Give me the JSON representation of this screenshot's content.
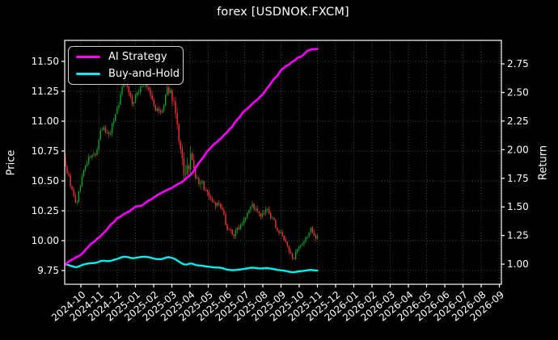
{
  "title": "forex [USDNOK.FXCM]",
  "legend": {
    "items": [
      {
        "label": "AI Strategy",
        "color": "#ff00ff"
      },
      {
        "label": "Buy-and-Hold",
        "color": "#00f0f0"
      }
    ]
  },
  "chart_data": {
    "type": "candlestick+line",
    "title": "forex [USDNOK.FXCM]",
    "grid": "dotted",
    "legend_position": "upper-left",
    "x_axis": {
      "tick_labels": [
        "2024-10",
        "2024-11",
        "2024-12",
        "2025-01",
        "2025-02",
        "2025-03",
        "2025-04",
        "2025-05",
        "2025-06",
        "2025-07",
        "2025-08",
        "2025-09",
        "2025-10",
        "2025-11",
        "2025-12",
        "2026-01",
        "2026-02",
        "2026-03",
        "2026-04",
        "2026-05",
        "2026-06",
        "2026-07",
        "2026-08",
        "2026-09"
      ],
      "range": [
        -0.889,
        23.111
      ]
    },
    "price_axis": {
      "label": "Price",
      "ticks": [
        9.75,
        10.0,
        10.25,
        10.5,
        10.75,
        11.0,
        11.25,
        11.5
      ],
      "range": [
        9.635,
        11.676
      ]
    },
    "return_axis": {
      "label": "Return",
      "ticks": [
        1.0,
        1.25,
        1.5,
        1.75,
        2.0,
        2.25,
        2.5,
        2.75
      ],
      "range": [
        0.824,
        2.955
      ]
    },
    "series": {
      "data_span_months": [
        -0.85,
        13.0
      ],
      "candle_count": 152,
      "seed": 9,
      "price_keypoints": [
        [
          -0.85,
          10.62
        ],
        [
          -0.6,
          10.45
        ],
        [
          -0.3,
          10.26
        ],
        [
          0,
          10.55
        ],
        [
          0.4,
          10.7
        ],
        [
          0.8,
          10.72
        ],
        [
          1.1,
          10.95
        ],
        [
          1.5,
          10.88
        ],
        [
          2.0,
          11.15
        ],
        [
          2.4,
          11.38
        ],
        [
          2.8,
          11.12
        ],
        [
          3.3,
          11.33
        ],
        [
          3.7,
          11.25
        ],
        [
          4.0,
          11.1
        ],
        [
          4.4,
          11.05
        ],
        [
          4.8,
          11.3
        ],
        [
          5.1,
          11.15
        ],
        [
          5.35,
          10.7
        ],
        [
          5.6,
          10.55
        ],
        [
          5.8,
          10.5
        ],
        [
          6.0,
          10.75
        ],
        [
          6.2,
          10.5
        ],
        [
          6.7,
          10.45
        ],
        [
          7.1,
          10.35
        ],
        [
          7.6,
          10.28
        ],
        [
          8.0,
          10.1
        ],
        [
          8.4,
          10.05
        ],
        [
          8.9,
          10.2
        ],
        [
          9.3,
          10.33
        ],
        [
          9.8,
          10.18
        ],
        [
          10.2,
          10.25
        ],
        [
          10.7,
          10.1
        ],
        [
          11.1,
          10.02
        ],
        [
          11.5,
          9.85
        ],
        [
          11.8,
          9.9
        ],
        [
          12.2,
          9.95
        ],
        [
          12.6,
          10.12
        ],
        [
          12.9,
          10.0
        ],
        [
          13.0,
          10.05
        ]
      ],
      "volatility_keypoints": [
        [
          -0.85,
          0.07
        ],
        [
          0,
          0.055
        ],
        [
          1,
          0.06
        ],
        [
          2,
          0.065
        ],
        [
          4.5,
          0.06
        ],
        [
          5.2,
          0.14
        ],
        [
          5.9,
          0.16
        ],
        [
          6.4,
          0.1
        ],
        [
          7,
          0.07
        ],
        [
          8,
          0.06
        ],
        [
          9,
          0.06
        ],
        [
          10,
          0.055
        ],
        [
          11,
          0.05
        ],
        [
          12,
          0.06
        ],
        [
          13,
          0.05
        ]
      ],
      "ai_strategy_keypoints": [
        [
          -0.85,
          1.0
        ],
        [
          0,
          1.08
        ],
        [
          1,
          1.22
        ],
        [
          2,
          1.4
        ],
        [
          3,
          1.5
        ],
        [
          4,
          1.57
        ],
        [
          5,
          1.66
        ],
        [
          6,
          1.78
        ],
        [
          7,
          2.0
        ],
        [
          8,
          2.14
        ],
        [
          9,
          2.34
        ],
        [
          10,
          2.5
        ],
        [
          11,
          2.68
        ],
        [
          12,
          2.8
        ],
        [
          12.5,
          2.85
        ],
        [
          13.0,
          2.88
        ]
      ],
      "buy_and_hold": "price / initial_price (plotted on Return axis)",
      "ai_strategy_final_return": 2.88,
      "buy_and_hold_final_return": 0.95
    },
    "colors": {
      "background": "#000000",
      "text": "#ffffff",
      "grid": "#4f4f4f",
      "spine": "#ffffff",
      "candle_up": "#0fa32a",
      "candle_down": "#f03535",
      "ai_strategy": "#ff00ff",
      "buy_and_hold": "#00f0f0"
    }
  }
}
